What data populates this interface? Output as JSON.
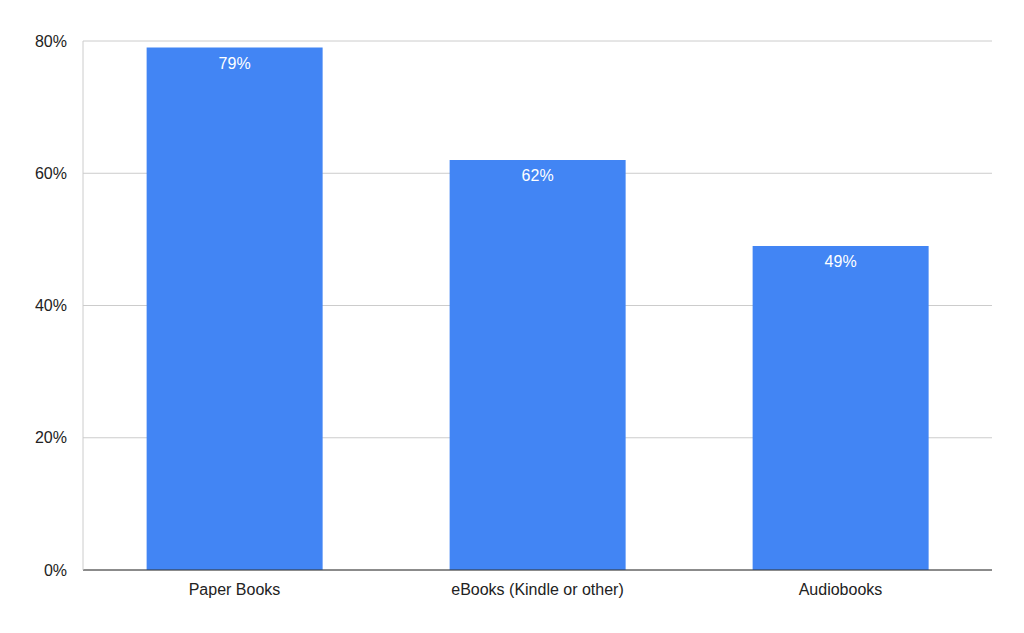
{
  "chart_data": {
    "type": "bar",
    "categories": [
      "Paper Books",
      "eBooks (Kindle or other)",
      "Audiobooks"
    ],
    "values": [
      79,
      62,
      49
    ],
    "value_labels": [
      "79%",
      "62%",
      "49%"
    ],
    "data_labels": true,
    "color": "#4285f4",
    "ylim": [
      0,
      80
    ],
    "yticks": [
      {
        "value": 0,
        "label": "0%"
      },
      {
        "value": 20,
        "label": "20%"
      },
      {
        "value": 40,
        "label": "40%"
      },
      {
        "value": 60,
        "label": "60%"
      },
      {
        "value": 80,
        "label": "80%"
      }
    ],
    "grid": true
  }
}
